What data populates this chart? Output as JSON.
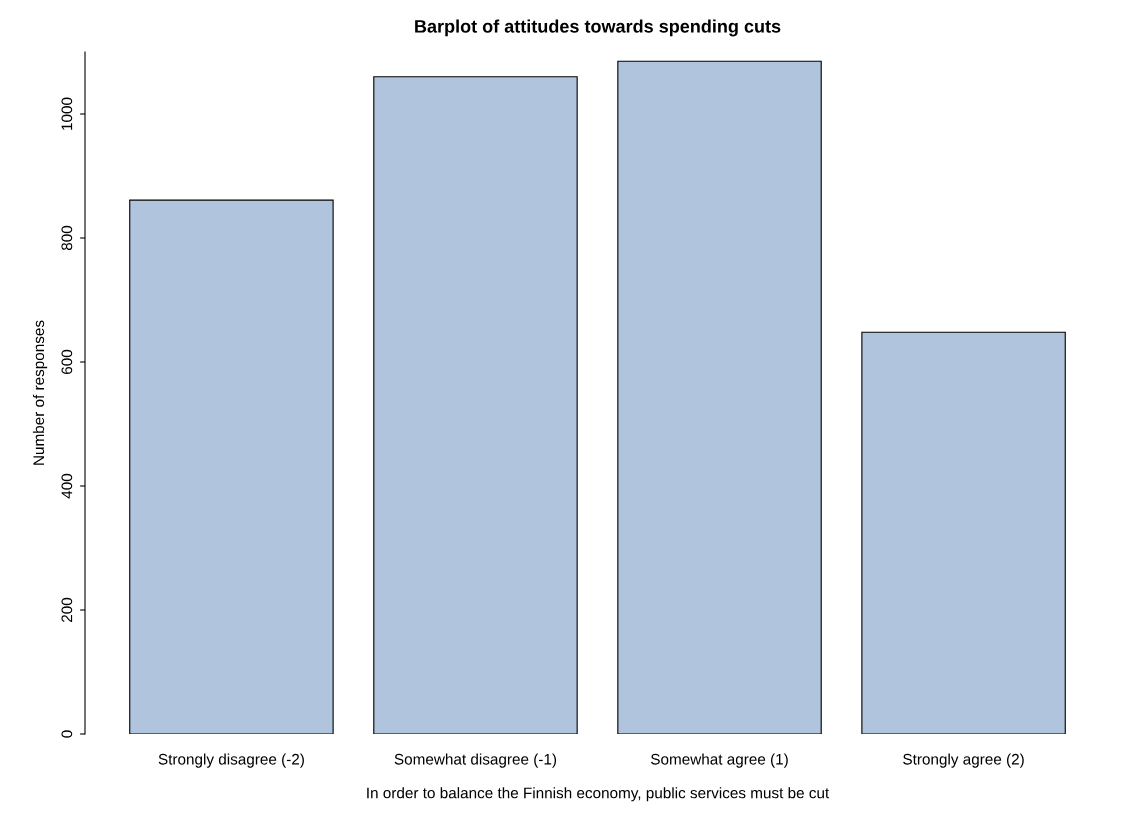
{
  "chart_data": {
    "type": "bar",
    "title": "Barplot of attitudes towards spending cuts",
    "xlabel": "In order to balance the Finnish economy, public services must be cut",
    "ylabel": "Number of responses",
    "categories": [
      "Strongly disagree (-2)",
      "Somewhat disagree (-1)",
      "Somewhat agree (1)",
      "Strongly agree (2)"
    ],
    "values": [
      861,
      1060,
      1085,
      648
    ],
    "color": "#b0c4de",
    "ylim": [
      0,
      1100
    ],
    "yticks": [
      0,
      200,
      400,
      600,
      800,
      1000
    ],
    "grid": false,
    "legend": false
  }
}
